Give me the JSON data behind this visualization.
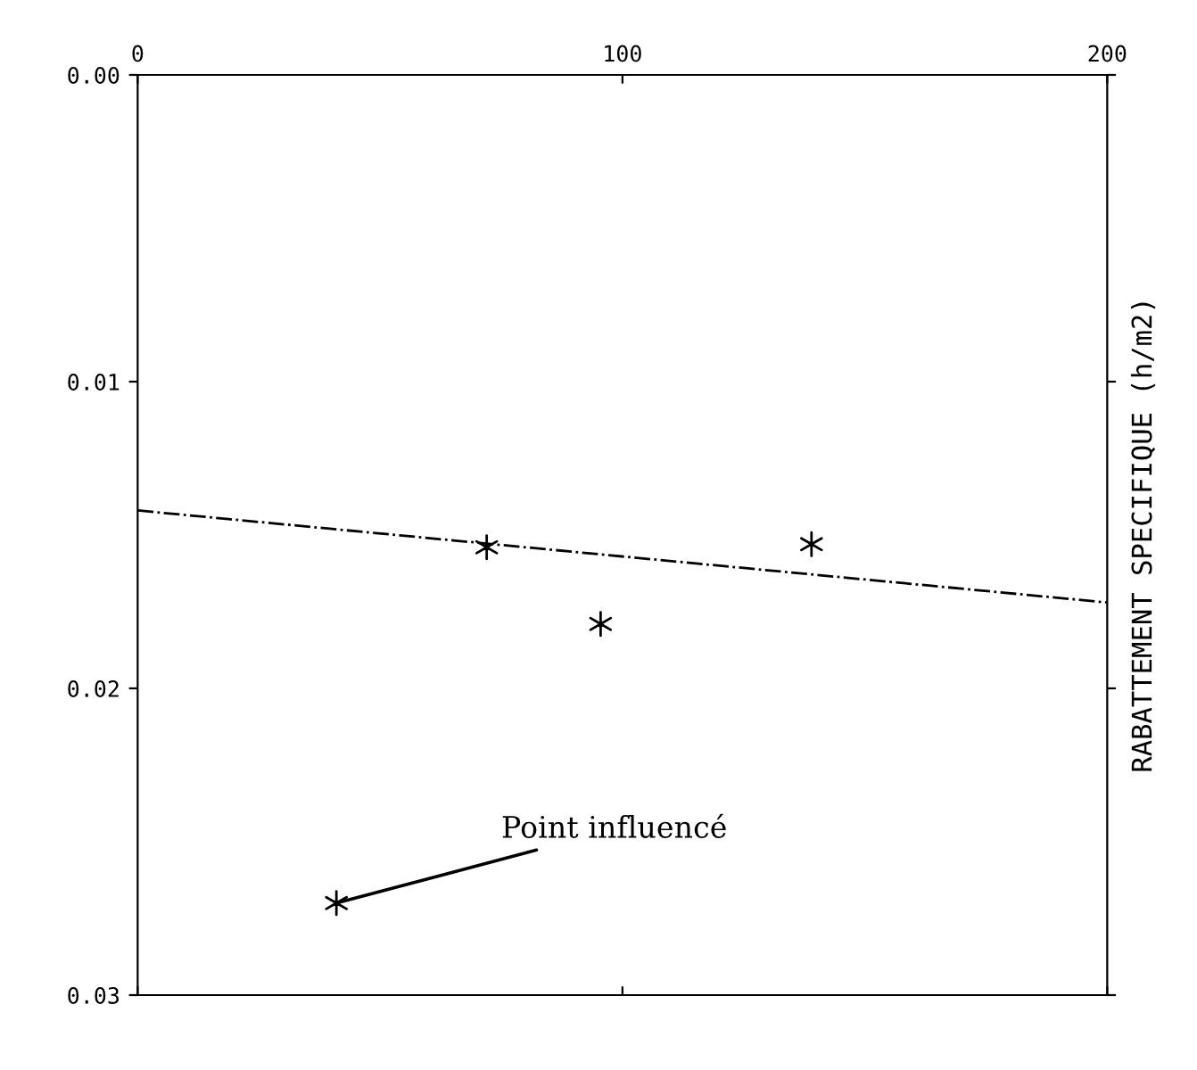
{
  "chart_data": {
    "type": "scatter",
    "ylabel": "RABATTEMENT SPECIFIQUE (h/m2)",
    "xlim": [
      0,
      200
    ],
    "xticks": [
      0,
      100,
      200
    ],
    "ylim": [
      0.03,
      0.0
    ],
    "yticks": [
      {
        "value": 0.0,
        "label": "0.00"
      },
      0.01,
      0.02,
      0.03
    ],
    "grid": false,
    "marker": "cross",
    "series": [
      {
        "color": "#000000",
        "x": [
          41,
          72,
          95.5,
          139
        ],
        "values": [
          0.027,
          0.0154,
          0.0179,
          0.0153
        ]
      },
      {
        "type": "line",
        "color": "#000000",
        "line_style": "dashed",
        "marker": "none",
        "x": [
          0,
          200
        ],
        "values": [
          0.0142,
          0.0172
        ]
      }
    ],
    "annotations": [
      {
        "text": "Point influencé",
        "x": 41,
        "y": 0.027
      }
    ]
  }
}
